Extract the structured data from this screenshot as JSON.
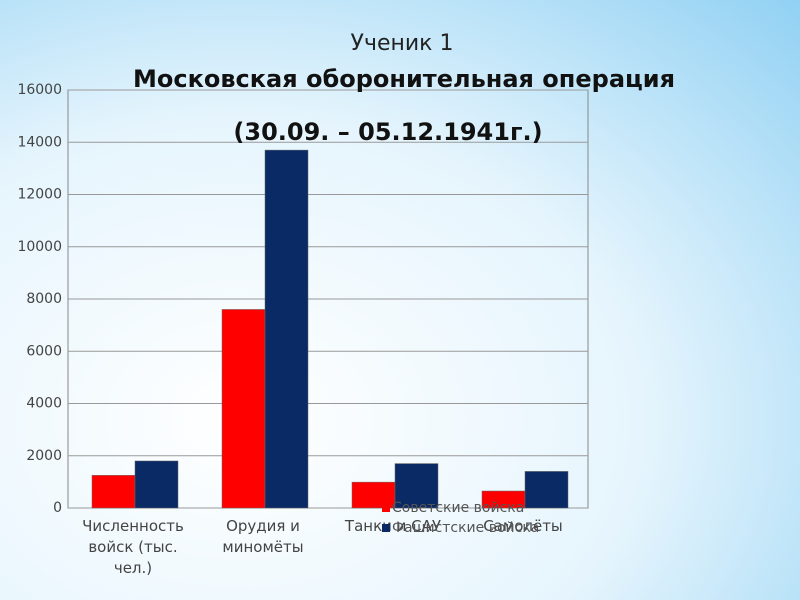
{
  "chart_data": {
    "type": "bar",
    "supertitle": "Ученик 1",
    "title": "Московская оборонительная операция",
    "subtitle": "(30.09. – 05.12.1941г.)",
    "categories": [
      "Численность войск (тыс. чел.)",
      "Орудия и миномёты",
      "Танки и САУ",
      "Самолёты"
    ],
    "series": [
      {
        "name": "Советские войска",
        "color": "#ff0000",
        "values": [
          1250,
          7600,
          990,
          650
        ]
      },
      {
        "name": "Фашистские войска",
        "color": "#0a2a66",
        "values": [
          1800,
          13700,
          1700,
          1400
        ]
      }
    ],
    "ylim": [
      0,
      16000
    ],
    "yticks": [
      0,
      2000,
      4000,
      6000,
      8000,
      10000,
      12000,
      14000,
      16000
    ],
    "grid": true
  }
}
